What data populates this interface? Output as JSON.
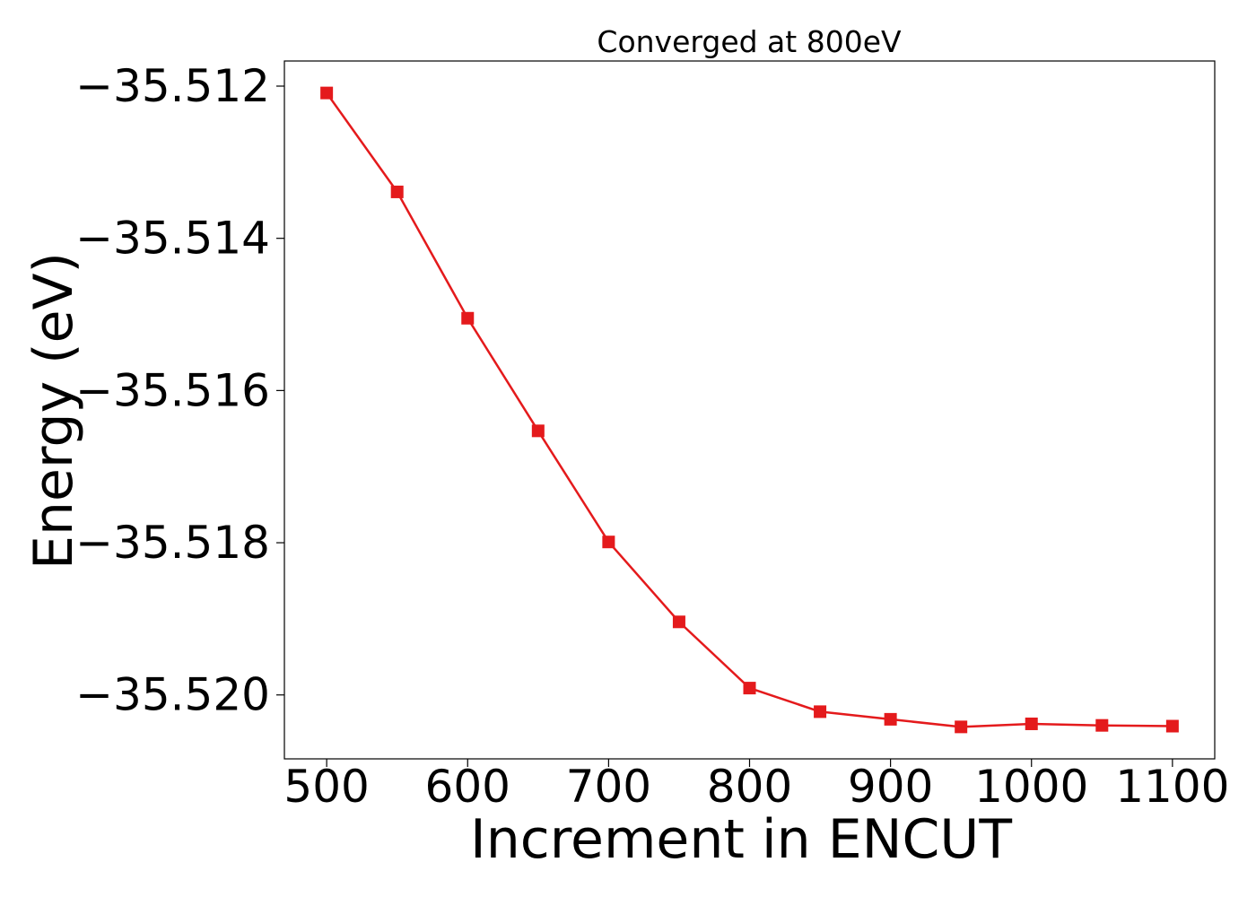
{
  "chart_data": {
    "type": "line",
    "title": "Converged at 800eV",
    "xlabel": "Increment in ENCUT",
    "ylabel": "Energy (eV)",
    "x": [
      500,
      550,
      600,
      650,
      700,
      750,
      800,
      850,
      900,
      950,
      1000,
      1050,
      1100
    ],
    "series": [
      {
        "values": [
          -35.51209,
          -35.51339,
          -35.51505,
          -35.51653,
          -35.51799,
          -35.51904,
          -35.51991,
          -35.52022,
          -35.52032,
          -35.52042,
          -35.52038,
          -35.5204,
          -35.52041
        ],
        "color": "#e41a1c",
        "marker": "square"
      }
    ],
    "xlim": [
      470,
      1130
    ],
    "ylim": [
      -35.52084,
      -35.51167
    ],
    "xticks": [
      500,
      600,
      700,
      800,
      900,
      1000,
      1100
    ],
    "xtick_labels": [
      "500",
      "600",
      "700",
      "800",
      "900",
      "1000",
      "1100"
    ],
    "yticks": [
      -35.512,
      -35.514,
      -35.516,
      -35.518,
      -35.52
    ],
    "ytick_labels": [
      "−35.512",
      "−35.514",
      "−35.516",
      "−35.518",
      "−35.520"
    ],
    "grid": false,
    "legend": "none"
  }
}
